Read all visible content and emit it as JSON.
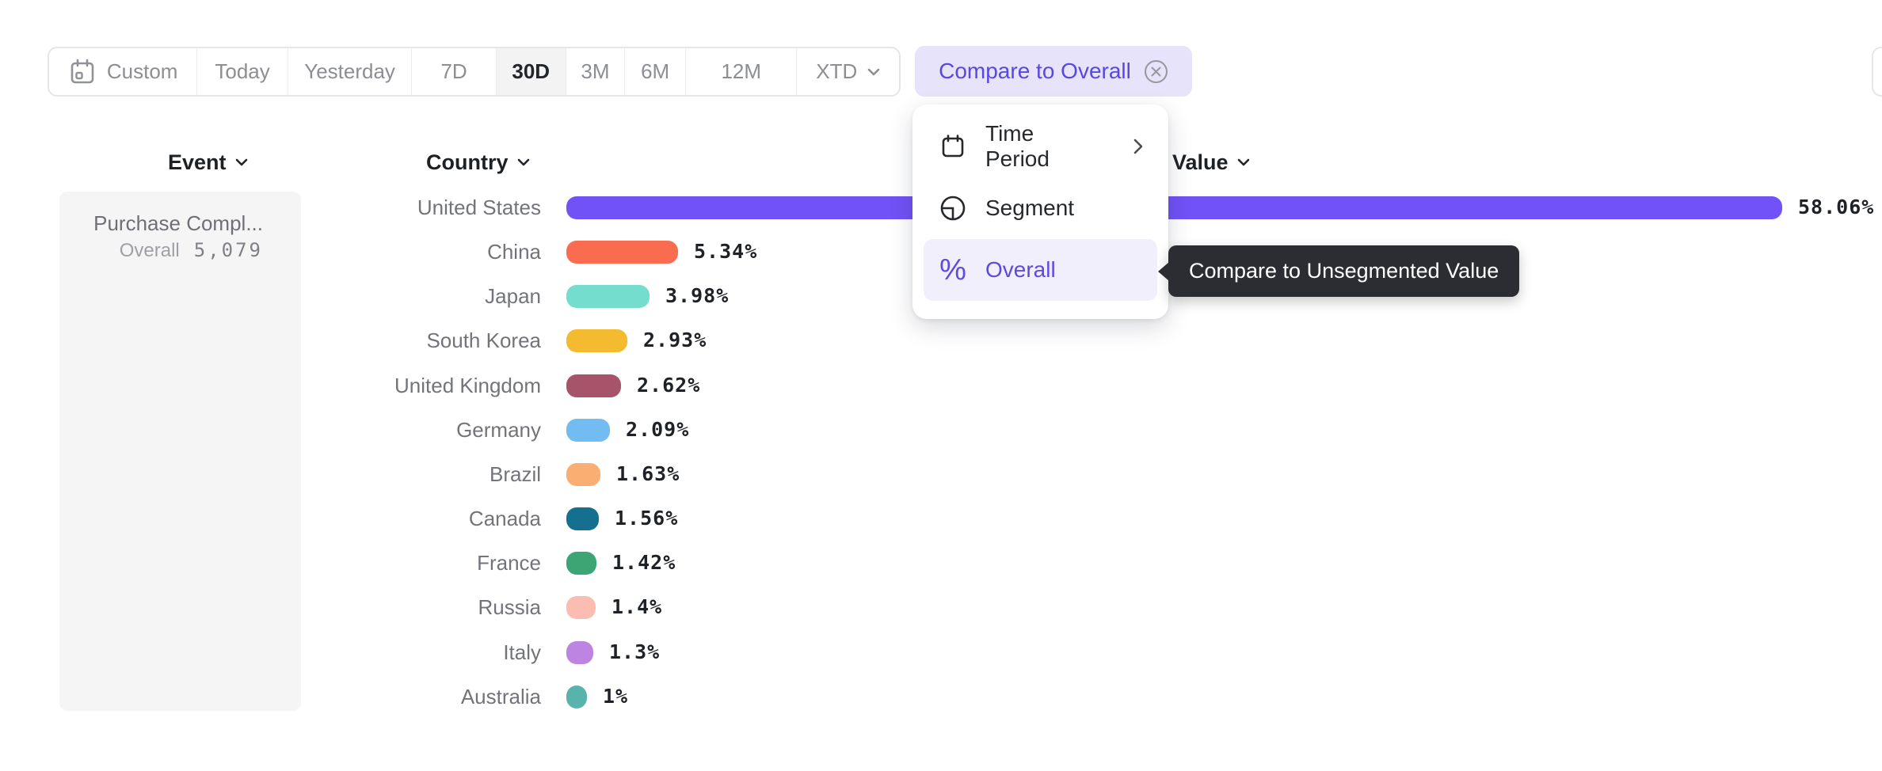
{
  "toolbar": {
    "segments": [
      {
        "label": "Custom",
        "icon": "calendar",
        "selected": false
      },
      {
        "label": "Today",
        "selected": false
      },
      {
        "label": "Yesterday",
        "selected": false
      },
      {
        "label": "7D",
        "selected": false
      },
      {
        "label": "30D",
        "selected": true
      },
      {
        "label": "3M",
        "selected": false
      },
      {
        "label": "6M",
        "selected": false
      },
      {
        "label": "12M",
        "selected": false
      },
      {
        "label": "XTD",
        "chevron": true,
        "selected": false
      }
    ],
    "compare_button": {
      "label": "Compare to Overall",
      "icon": "circle-x-icon"
    }
  },
  "menu": {
    "items": [
      {
        "label": "Time Period",
        "icon": "calendar-icon",
        "submenu": true,
        "active": false
      },
      {
        "label": "Segment",
        "icon": "segment-icon",
        "active": false
      },
      {
        "label": "Overall",
        "icon": "percent-icon",
        "active": true
      }
    ]
  },
  "tooltip": {
    "text": "Compare to Unsegmented Value"
  },
  "columns": {
    "event": "Event",
    "country": "Country",
    "value": "Value"
  },
  "event_card": {
    "title": "Purchase Compl...",
    "overall_label": "Overall",
    "overall_value": "5,079"
  },
  "colors": {
    "accent_purple": "#5B4BE0",
    "compare_pill_bg": "#E6E3FA",
    "menu_active_bg": "#F1EFFB",
    "tooltip_bg": "#2C2D33",
    "selected_segment_bg": "#F3F3F4"
  },
  "chart_data": {
    "type": "bar",
    "orientation": "horizontal",
    "categories": [
      "United States",
      "China",
      "Japan",
      "South Korea",
      "United Kingdom",
      "Germany",
      "Brazil",
      "Canada",
      "France",
      "Russia",
      "Italy",
      "Australia"
    ],
    "values": [
      58.06,
      5.34,
      3.98,
      2.93,
      2.62,
      2.09,
      1.63,
      1.56,
      1.42,
      1.4,
      1.3,
      1
    ],
    "value_labels": [
      "58.06%",
      "5.34%",
      "3.98%",
      "2.93%",
      "2.62%",
      "2.09%",
      "1.63%",
      "1.56%",
      "1.42%",
      "1.4%",
      "1.3%",
      "1%"
    ],
    "bar_colors": [
      "#7152F6",
      "#F96C50",
      "#74DDCD",
      "#F4BB31",
      "#A7536A",
      "#73BCF1",
      "#FAAE72",
      "#15708F",
      "#3BA674",
      "#FBBDB1",
      "#BD84E2",
      "#58B3AB"
    ],
    "xlim": [
      0,
      60
    ],
    "legend": false,
    "grid": false
  }
}
